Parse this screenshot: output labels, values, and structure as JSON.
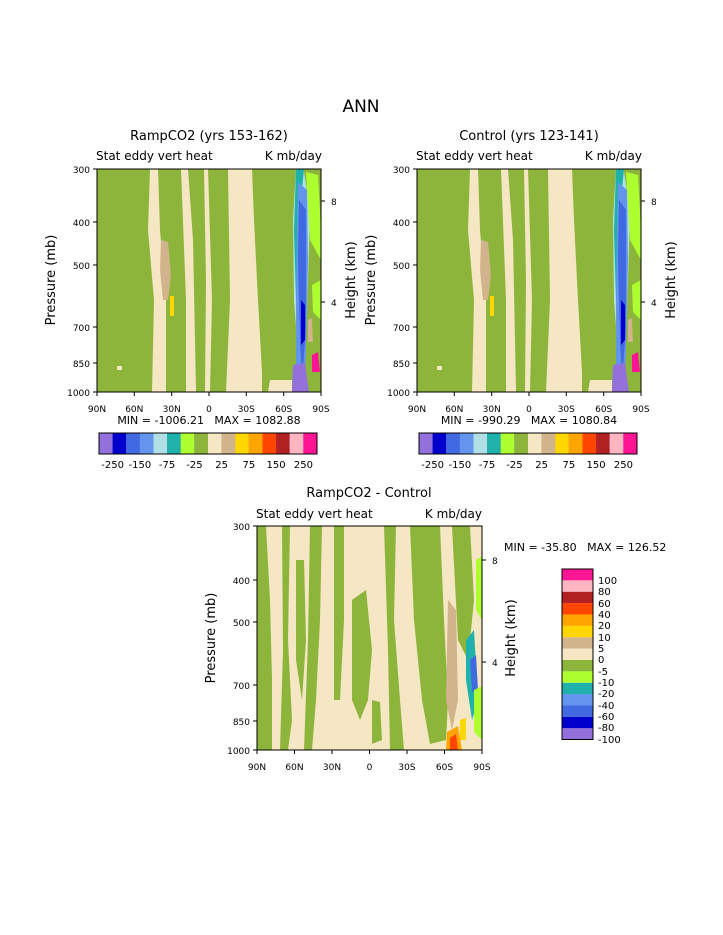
{
  "title": "ANN",
  "colors": {
    "purple": "#9370DB",
    "navy": "#0000CD",
    "blue": "#4169E1",
    "cornflower": "#6495ED",
    "lightblue": "#B0E0E6",
    "teal": "#20B2AA",
    "lightgreen": "#ADFF2F",
    "olive": "#8DB53C",
    "cream": "#F5E6C4",
    "tan": "#D2B48C",
    "yellow": "#FFD700",
    "orange": "#FFA500",
    "redorange": "#FF4500",
    "brown": "#B22222",
    "pink": "#FFB6C1",
    "magenta": "#FF1493"
  },
  "chart_data": [
    {
      "type": "heatmap",
      "title": "RampCO2 (yrs 153-162)",
      "subtitle_left": "Stat eddy vert heat",
      "subtitle_right": "K mb/day",
      "ylabel": "Pressure (mb)",
      "ylabel_right": "Height (km)",
      "x_ticks": [
        "90N",
        "60N",
        "30N",
        "0",
        "30S",
        "60S",
        "90S"
      ],
      "y_ticks": [
        "300",
        "400",
        "500",
        "700",
        "850",
        "1000"
      ],
      "y_ticks_right": [
        "8",
        "4"
      ],
      "min_max": "MIN = -1006.21   MAX = 1082.88",
      "colorbar_labels": [
        "-250",
        "-150",
        "-75",
        "-25",
        "25",
        "75",
        "150",
        "250"
      ]
    },
    {
      "type": "heatmap",
      "title": "Control (yrs 123-141)",
      "subtitle_left": "Stat eddy vert heat",
      "subtitle_right": "K mb/day",
      "ylabel": "Pressure (mb)",
      "ylabel_right": "Height (km)",
      "x_ticks": [
        "90N",
        "60N",
        "30N",
        "0",
        "30S",
        "60S",
        "90S"
      ],
      "y_ticks": [
        "300",
        "400",
        "500",
        "700",
        "850",
        "1000"
      ],
      "y_ticks_right": [
        "8",
        "4"
      ],
      "min_max": "MIN = -990.29   MAX = 1080.84",
      "colorbar_labels": [
        "-250",
        "-150",
        "-75",
        "-25",
        "25",
        "75",
        "150",
        "250"
      ]
    },
    {
      "type": "heatmap",
      "title": "RampCO2 - Control",
      "subtitle_left": "Stat eddy vert heat",
      "subtitle_right": "K mb/day",
      "ylabel": "Pressure (mb)",
      "ylabel_right": "Height (km)",
      "x_ticks": [
        "90N",
        "60N",
        "30N",
        "0",
        "30S",
        "60S",
        "90S"
      ],
      "y_ticks": [
        "300",
        "400",
        "500",
        "700",
        "850",
        "1000"
      ],
      "y_ticks_right": [
        "8",
        "4"
      ],
      "min_max": "MIN = -35.80   MAX = 126.52",
      "colorbar_labels": [
        "100",
        "80",
        "60",
        "40",
        "20",
        "10",
        "5",
        "0",
        "-5",
        "-10",
        "-20",
        "-40",
        "-60",
        "-80",
        "-100"
      ]
    }
  ]
}
